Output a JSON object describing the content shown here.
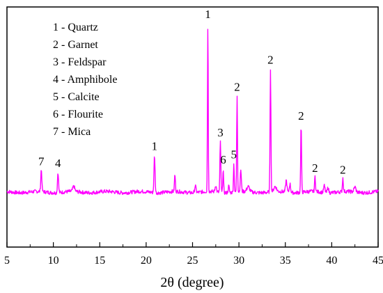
{
  "chart_data": {
    "type": "line",
    "title": "",
    "xlabel": "2θ (degree)",
    "ylabel": "",
    "xlim": [
      5,
      45
    ],
    "x_ticks": [
      5,
      10,
      15,
      20,
      25,
      30,
      35,
      40,
      45
    ],
    "x_tick_labels": [
      "5",
      "10",
      "15",
      "20",
      "25",
      "30",
      "35",
      "40",
      "45"
    ],
    "y_ticks_visible": false,
    "ylim": [
      0,
      100
    ],
    "grid": false,
    "line_color": "#ff00ff",
    "baseline": 7,
    "peaks": [
      {
        "x": 8.7,
        "y": 13,
        "w": 0.08
      },
      {
        "x": 10.5,
        "y": 12,
        "w": 0.08
      },
      {
        "x": 12.2,
        "y": 3,
        "w": 0.15
      },
      {
        "x": 20.9,
        "y": 22,
        "w": 0.08
      },
      {
        "x": 23.1,
        "y": 10,
        "w": 0.07
      },
      {
        "x": 25.3,
        "y": 4,
        "w": 0.1
      },
      {
        "x": 26.65,
        "y": 100,
        "w": 0.055
      },
      {
        "x": 27.5,
        "y": 4,
        "w": 0.1
      },
      {
        "x": 28.0,
        "y": 30,
        "w": 0.07
      },
      {
        "x": 28.3,
        "y": 14,
        "w": 0.06
      },
      {
        "x": 28.9,
        "y": 4,
        "w": 0.08
      },
      {
        "x": 29.45,
        "y": 17,
        "w": 0.06
      },
      {
        "x": 29.8,
        "y": 57,
        "w": 0.06
      },
      {
        "x": 30.2,
        "y": 13,
        "w": 0.08
      },
      {
        "x": 31.0,
        "y": 3,
        "w": 0.2
      },
      {
        "x": 33.4,
        "y": 73,
        "w": 0.065
      },
      {
        "x": 33.9,
        "y": 3,
        "w": 0.2
      },
      {
        "x": 35.1,
        "y": 7,
        "w": 0.1
      },
      {
        "x": 35.5,
        "y": 5,
        "w": 0.1
      },
      {
        "x": 36.7,
        "y": 40,
        "w": 0.065
      },
      {
        "x": 38.2,
        "y": 9,
        "w": 0.07
      },
      {
        "x": 39.2,
        "y": 4,
        "w": 0.1
      },
      {
        "x": 39.6,
        "y": 3,
        "w": 0.1
      },
      {
        "x": 41.2,
        "y": 8,
        "w": 0.07
      },
      {
        "x": 42.5,
        "y": 3,
        "w": 0.15
      }
    ],
    "legend": {
      "placement": "top-left",
      "entries": [
        "1 - Quartz",
        "2 - Garnet",
        "3 - Feldspar",
        "4 - Amphibole",
        "5 - Calcite",
        "6 - Flourite",
        "7 - Mica"
      ]
    },
    "annotations": [
      {
        "text": "7",
        "x": 8.7
      },
      {
        "text": "4",
        "x": 10.5
      },
      {
        "text": "1",
        "x": 20.9
      },
      {
        "text": "1",
        "x": 26.65
      },
      {
        "text": "3",
        "x": 28.0
      },
      {
        "text": "6",
        "x": 28.3
      },
      {
        "text": "5",
        "x": 29.45
      },
      {
        "text": "2",
        "x": 29.8
      },
      {
        "text": "2",
        "x": 33.4
      },
      {
        "text": "2",
        "x": 36.7
      },
      {
        "text": "2",
        "x": 38.2
      },
      {
        "text": "2",
        "x": 41.2
      }
    ]
  }
}
